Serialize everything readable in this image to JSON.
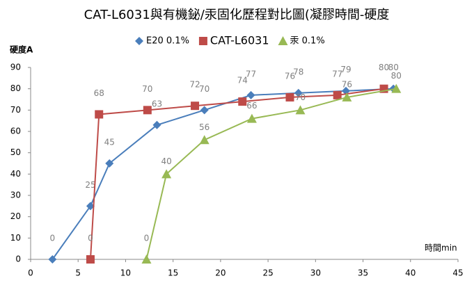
{
  "chart_data": {
    "type": "line",
    "title": "CAT-L6031與有機鉍/汞固化歷程對比圖(凝膠時間-硬度",
    "y_label": "硬度A",
    "x_label": "時間min",
    "xlim": [
      0,
      45
    ],
    "xticks": [
      0,
      5,
      10,
      15,
      20,
      25,
      30,
      35,
      40,
      45
    ],
    "ylim": [
      0,
      90
    ],
    "yticks": [
      0,
      10,
      20,
      30,
      40,
      50,
      60,
      70,
      80,
      90
    ],
    "series": [
      {
        "name": "E20 0.1%",
        "color": "#4a7ebb",
        "marker": "diamond",
        "x": [
          2.3,
          6.3,
          8.3,
          13.3,
          18.3,
          23.2,
          28.2,
          33.2,
          38.2
        ],
        "values": [
          0,
          25,
          45,
          63,
          70,
          77,
          78,
          79,
          80
        ]
      },
      {
        "name": "CAT-L6031",
        "color": "#be4b48",
        "marker": "square",
        "x": [
          6.3,
          7.2,
          12.3,
          17.3,
          22.3,
          27.3,
          32.3,
          37.2
        ],
        "values": [
          0,
          68,
          70,
          72,
          74,
          76,
          77,
          80
        ]
      },
      {
        "name": "汞 0.1%",
        "color": "#98b954",
        "marker": "triangle",
        "x": [
          12.2,
          14.3,
          18.3,
          23.3,
          28.4,
          33.3,
          38.5
        ],
        "values": [
          0,
          40,
          56,
          66,
          70,
          76,
          80
        ]
      }
    ]
  }
}
